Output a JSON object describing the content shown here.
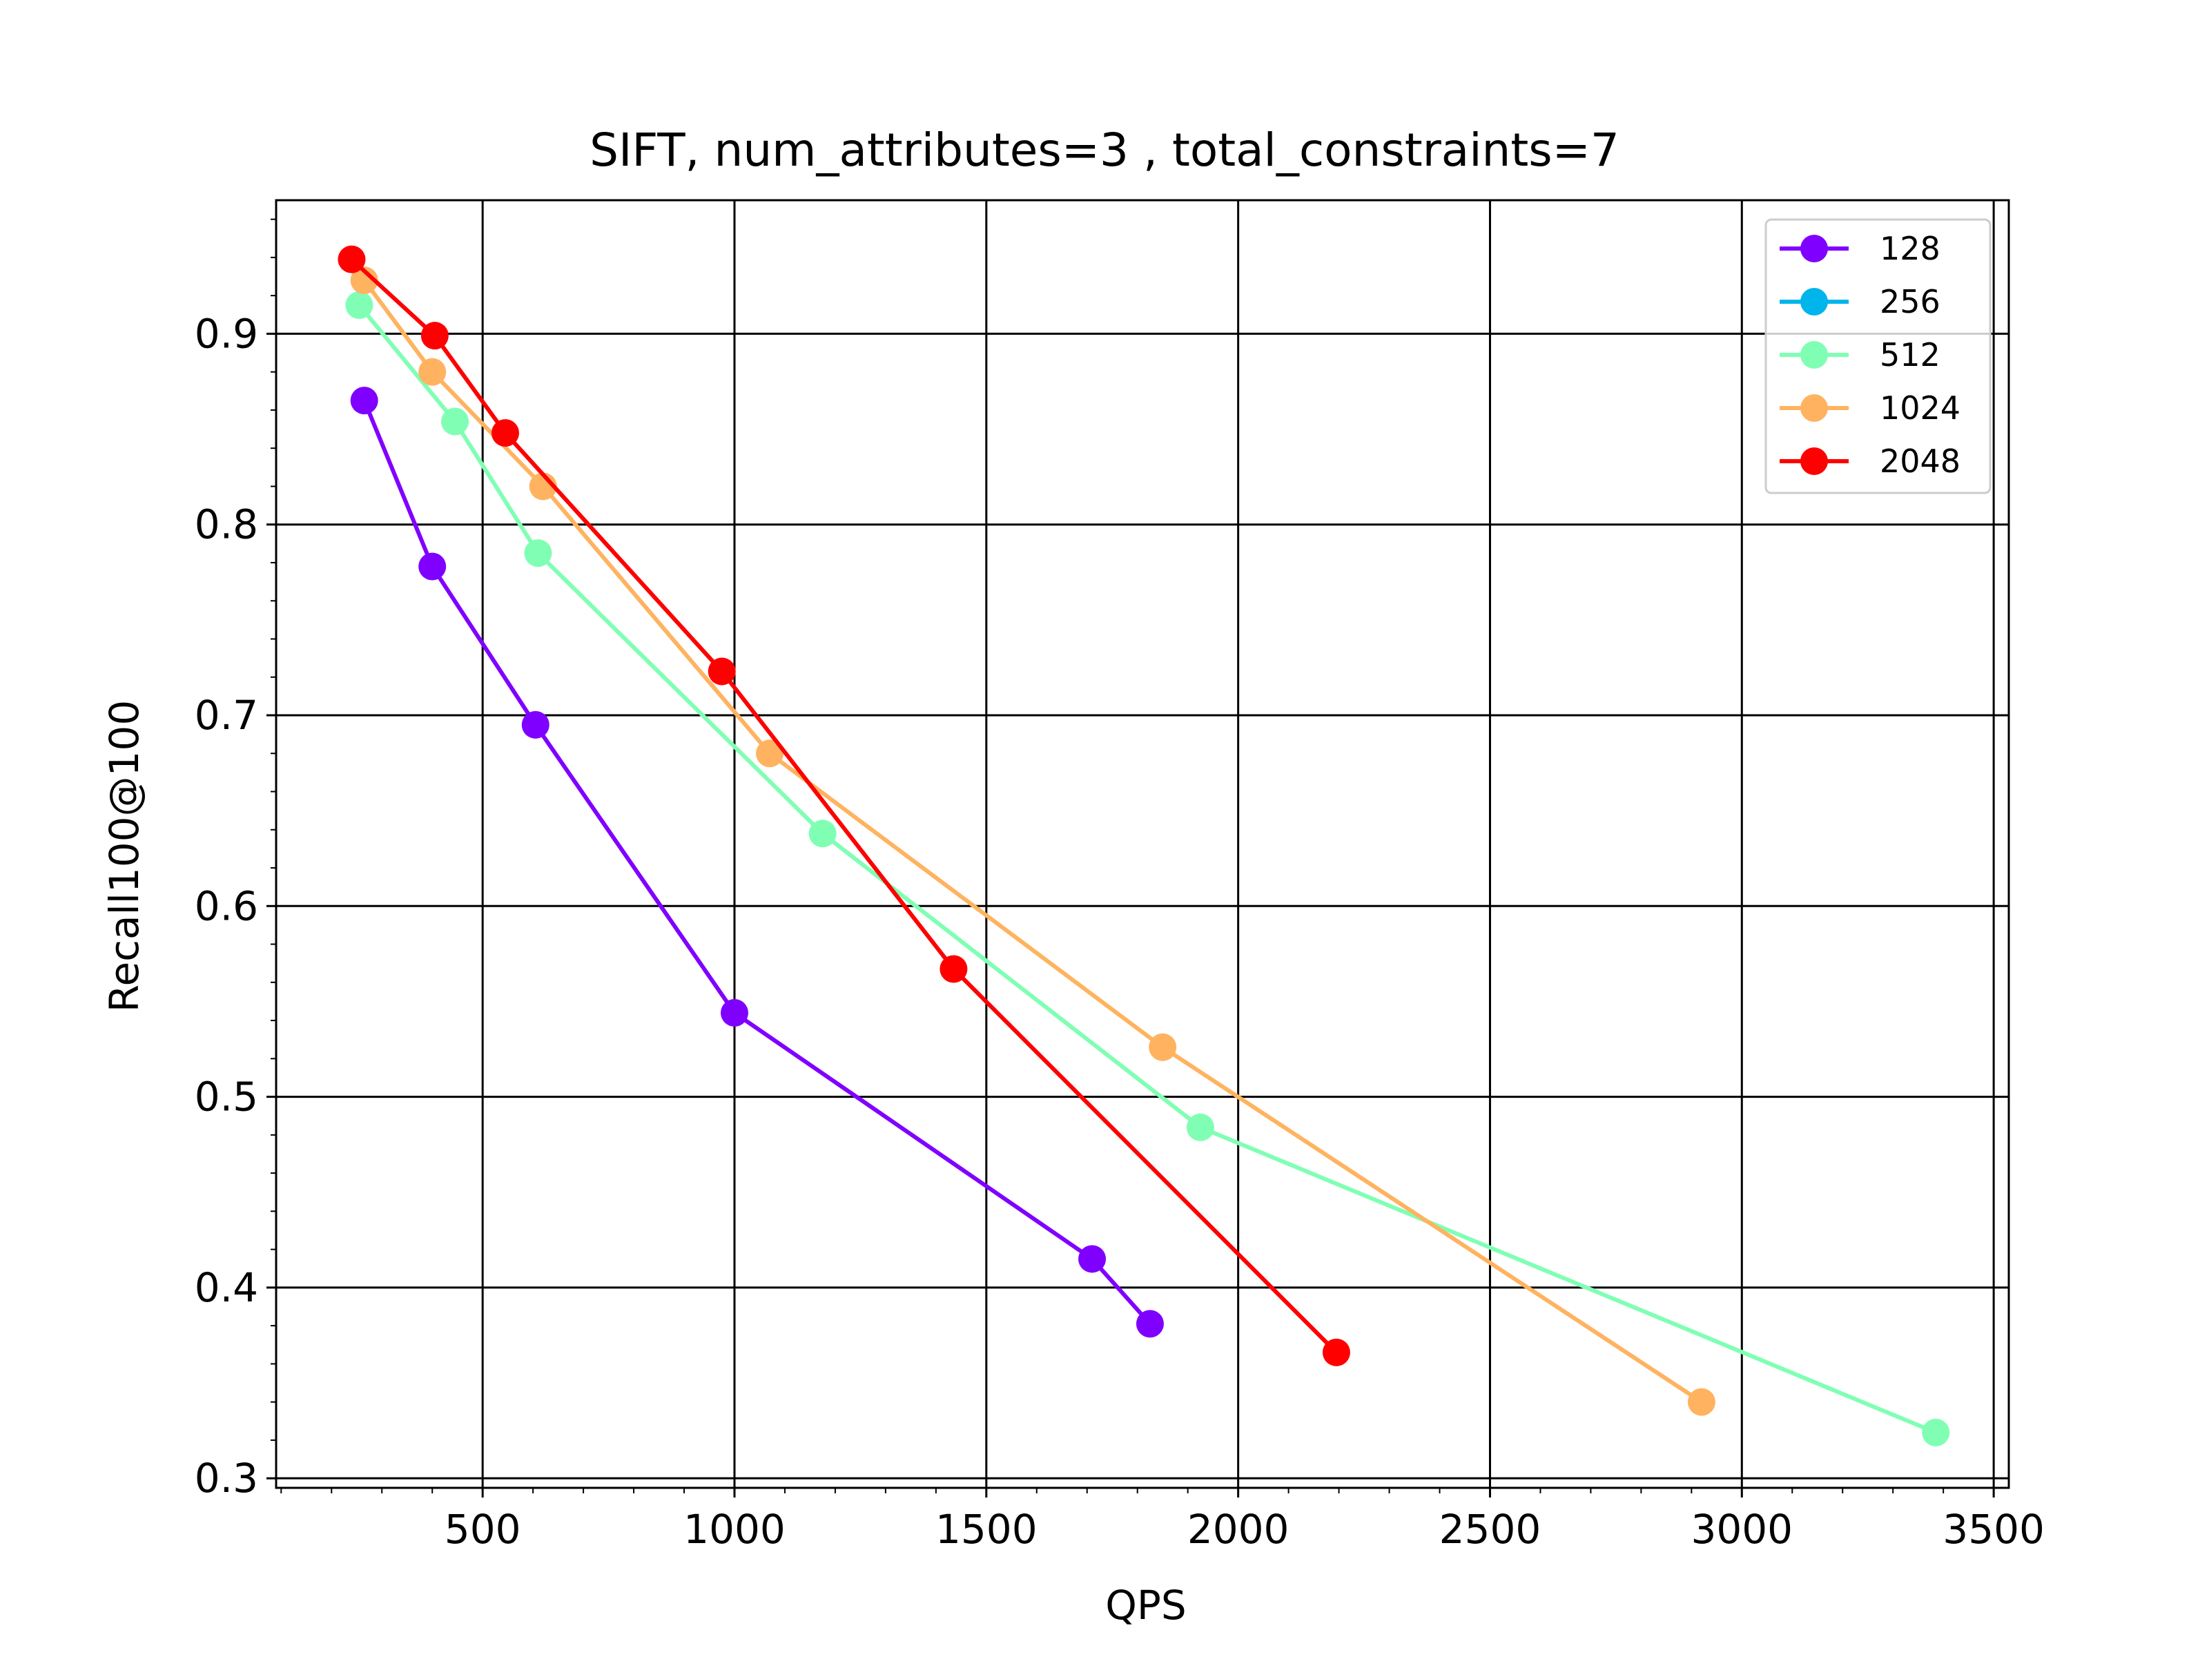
{
  "chart_data": {
    "type": "line",
    "title": "SIFT, num_attributes=3 , total_constraints=7",
    "xlabel": "QPS",
    "ylabel": "Recall100@100",
    "xlim": [
      90,
      3530
    ],
    "ylim": [
      0.295,
      0.97
    ],
    "xticks": [
      500,
      1000,
      1500,
      2000,
      2500,
      3000,
      3500
    ],
    "yticks": [
      0.3,
      0.4,
      0.5,
      0.6,
      0.7,
      0.8,
      0.9
    ],
    "xtick_labels": [
      "500",
      "1000",
      "1500",
      "2000",
      "2500",
      "3000",
      "3500"
    ],
    "ytick_labels": [
      "0.3",
      "0.4",
      "0.5",
      "0.6",
      "0.7",
      "0.8",
      "0.9"
    ],
    "grid": true,
    "legend_position": "top-right",
    "series": [
      {
        "name": "128",
        "color": "#8000ff",
        "points": [
          [
            265,
            0.865
          ],
          [
            400,
            0.778
          ],
          [
            605,
            0.695
          ],
          [
            1000,
            0.544
          ],
          [
            1710,
            0.415
          ],
          [
            1825,
            0.381
          ]
        ]
      },
      {
        "name": "256",
        "color": "#00b5eb",
        "points": []
      },
      {
        "name": "512",
        "color": "#80ffb4",
        "points": [
          [
            255,
            0.915
          ],
          [
            445,
            0.854
          ],
          [
            610,
            0.785
          ],
          [
            1175,
            0.638
          ],
          [
            1925,
            0.484
          ],
          [
            3385,
            0.324
          ]
        ]
      },
      {
        "name": "1024",
        "color": "#ffb360",
        "points": [
          [
            265,
            0.928
          ],
          [
            400,
            0.88
          ],
          [
            620,
            0.82
          ],
          [
            1070,
            0.68
          ],
          [
            1850,
            0.526
          ],
          [
            2920,
            0.34
          ]
        ]
      },
      {
        "name": "2048",
        "color": "#ff0000",
        "points": [
          [
            240,
            0.939
          ],
          [
            405,
            0.899
          ],
          [
            545,
            0.848
          ],
          [
            975,
            0.723
          ],
          [
            1435,
            0.567
          ],
          [
            2195,
            0.366
          ]
        ]
      }
    ]
  }
}
